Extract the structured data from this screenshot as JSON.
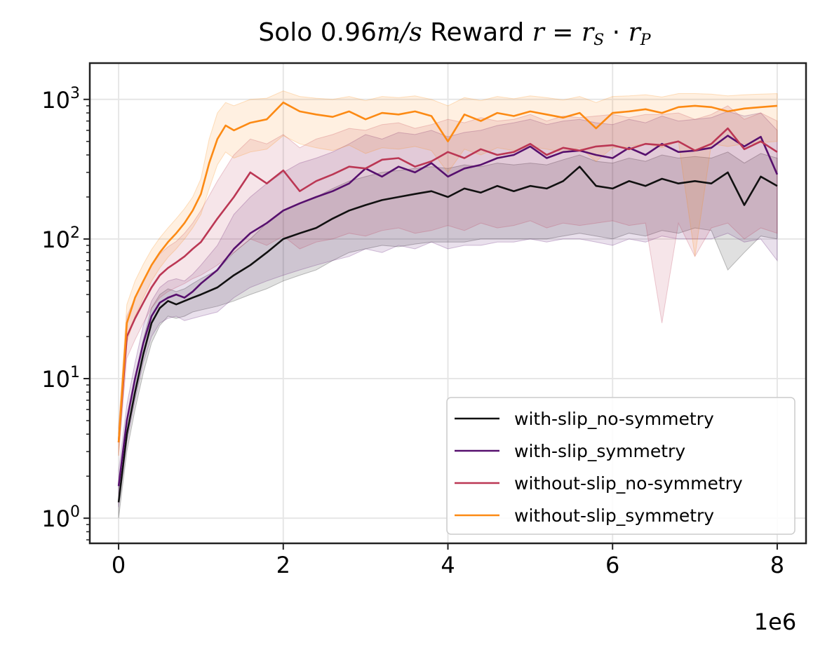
{
  "chart_data": {
    "type": "line",
    "title": {
      "prefix": "Solo 0.96",
      "unit": "m/s",
      "middle": " Reward ",
      "formula_r": "r",
      "formula_eq": " = ",
      "formula_rs": "r",
      "formula_rs_sub": "S",
      "formula_dot": " · ",
      "formula_rp": "r",
      "formula_rp_sub": "P"
    },
    "x_scale_label": "1e6",
    "xlabel": "",
    "ylabel": "",
    "xlim": [
      -0.35,
      8.35
    ],
    "ylim_log10": [
      -0.18,
      3.26
    ],
    "yscale": "log",
    "grid": true,
    "legend_position": "lower-right",
    "x_ticks": [
      {
        "value": 0,
        "label": "0"
      },
      {
        "value": 2,
        "label": "2"
      },
      {
        "value": 4,
        "label": "4"
      },
      {
        "value": 6,
        "label": "6"
      },
      {
        "value": 8,
        "label": "8"
      }
    ],
    "y_ticks": [
      {
        "exp": 0,
        "base": "10",
        "sup": "0"
      },
      {
        "exp": 1,
        "base": "10",
        "sup": "1"
      },
      {
        "exp": 2,
        "base": "10",
        "sup": "2"
      },
      {
        "exp": 3,
        "base": "10",
        "sup": "3"
      }
    ],
    "series": [
      {
        "name": "with-slip_no-symmetry",
        "color": "#111111",
        "x": [
          0,
          0.1,
          0.2,
          0.3,
          0.4,
          0.5,
          0.6,
          0.7,
          0.8,
          0.9,
          1.0,
          1.2,
          1.4,
          1.6,
          1.8,
          2.0,
          2.2,
          2.4,
          2.6,
          2.8,
          3.0,
          3.2,
          3.4,
          3.6,
          3.8,
          4.0,
          4.2,
          4.4,
          4.6,
          4.8,
          5.0,
          5.2,
          5.4,
          5.6,
          5.8,
          6.0,
          6.2,
          6.4,
          6.6,
          6.8,
          7.0,
          7.2,
          7.4,
          7.6,
          7.8,
          8.0
        ],
        "y": [
          1.3,
          4,
          8,
          15,
          25,
          32,
          36,
          34,
          36,
          38,
          40,
          45,
          55,
          65,
          80,
          100,
          110,
          120,
          140,
          160,
          175,
          190,
          200,
          210,
          220,
          200,
          230,
          215,
          240,
          220,
          240,
          230,
          260,
          330,
          240,
          230,
          260,
          240,
          270,
          250,
          260,
          250,
          300,
          175,
          280,
          240
        ],
        "y_low": [
          1.0,
          3,
          6,
          11,
          18,
          24,
          28,
          27,
          28,
          30,
          31,
          33,
          36,
          40,
          44,
          50,
          55,
          60,
          70,
          80,
          85,
          90,
          88,
          92,
          95,
          95,
          95,
          100,
          100,
          100,
          100,
          100,
          105,
          110,
          105,
          100,
          110,
          105,
          115,
          110,
          120,
          115,
          60,
          80,
          105,
          100
        ],
        "y_high": [
          1.7,
          5,
          10,
          19,
          32,
          40,
          44,
          42,
          44,
          48,
          52,
          60,
          80,
          100,
          130,
          160,
          180,
          200,
          230,
          260,
          280,
          300,
          310,
          320,
          330,
          320,
          340,
          330,
          350,
          340,
          350,
          340,
          370,
          400,
          360,
          350,
          380,
          360,
          400,
          380,
          390,
          380,
          420,
          350,
          410,
          380
        ]
      },
      {
        "name": "with-slip_symmetry",
        "color": "#57106e",
        "x": [
          0,
          0.1,
          0.2,
          0.3,
          0.4,
          0.5,
          0.6,
          0.7,
          0.8,
          0.9,
          1.0,
          1.2,
          1.4,
          1.6,
          1.8,
          2.0,
          2.2,
          2.4,
          2.6,
          2.8,
          3.0,
          3.2,
          3.4,
          3.6,
          3.8,
          4.0,
          4.2,
          4.4,
          4.6,
          4.8,
          5.0,
          5.2,
          5.4,
          5.6,
          5.8,
          6.0,
          6.2,
          6.4,
          6.6,
          6.8,
          7.0,
          7.2,
          7.4,
          7.6,
          7.8,
          8.0
        ],
        "y": [
          1.7,
          5,
          10,
          18,
          28,
          35,
          38,
          40,
          38,
          42,
          48,
          60,
          85,
          110,
          130,
          160,
          180,
          200,
          220,
          250,
          320,
          280,
          330,
          300,
          350,
          280,
          320,
          340,
          380,
          400,
          460,
          380,
          420,
          430,
          400,
          380,
          450,
          400,
          480,
          420,
          430,
          450,
          550,
          460,
          540,
          290
        ],
        "y_low": [
          1.2,
          3.5,
          7,
          13,
          20,
          25,
          27,
          28,
          26,
          27,
          28,
          30,
          38,
          45,
          50,
          55,
          60,
          65,
          70,
          75,
          85,
          80,
          90,
          85,
          95,
          85,
          90,
          90,
          95,
          95,
          100,
          95,
          100,
          100,
          95,
          90,
          100,
          95,
          105,
          100,
          100,
          100,
          110,
          95,
          100,
          70
        ],
        "y_high": [
          2.2,
          6.5,
          13,
          24,
          36,
          45,
          50,
          52,
          50,
          56,
          65,
          90,
          150,
          200,
          250,
          300,
          350,
          380,
          420,
          480,
          560,
          520,
          580,
          560,
          600,
          540,
          580,
          600,
          650,
          680,
          720,
          660,
          700,
          720,
          680,
          660,
          720,
          680,
          760,
          700,
          720,
          740,
          820,
          760,
          800,
          600
        ]
      },
      {
        "name": "without-slip_no-symmetry",
        "color": "#bb3754",
        "x": [
          0,
          0.1,
          0.2,
          0.3,
          0.4,
          0.5,
          0.6,
          0.7,
          0.8,
          0.9,
          1.0,
          1.2,
          1.4,
          1.6,
          1.8,
          2.0,
          2.2,
          2.4,
          2.6,
          2.8,
          3.0,
          3.2,
          3.4,
          3.6,
          3.8,
          4.0,
          4.2,
          4.4,
          4.6,
          4.8,
          5.0,
          5.2,
          5.4,
          5.6,
          5.8,
          6.0,
          6.2,
          6.4,
          6.6,
          6.8,
          7.0,
          7.2,
          7.4,
          7.6,
          7.8,
          8.0
        ],
        "y": [
          3.5,
          20,
          27,
          35,
          45,
          55,
          62,
          68,
          75,
          85,
          95,
          140,
          200,
          300,
          250,
          310,
          220,
          260,
          290,
          330,
          320,
          370,
          380,
          330,
          360,
          420,
          380,
          440,
          400,
          420,
          480,
          400,
          450,
          430,
          460,
          470,
          440,
          480,
          470,
          500,
          430,
          480,
          620,
          440,
          500,
          420
        ],
        "y_low": [
          2.8,
          14,
          19,
          25,
          32,
          38,
          42,
          45,
          48,
          52,
          55,
          65,
          80,
          100,
          90,
          105,
          85,
          95,
          100,
          110,
          105,
          115,
          120,
          110,
          115,
          125,
          115,
          130,
          120,
          125,
          135,
          120,
          130,
          125,
          130,
          135,
          125,
          130,
          25,
          130,
          75,
          120,
          130,
          100,
          120,
          110
        ],
        "y_high": [
          4.5,
          28,
          38,
          50,
          64,
          78,
          88,
          96,
          110,
          130,
          160,
          260,
          400,
          520,
          480,
          560,
          450,
          520,
          560,
          620,
          600,
          660,
          680,
          620,
          660,
          720,
          680,
          740,
          700,
          720,
          780,
          700,
          760,
          740,
          760,
          780,
          740,
          780,
          780,
          800,
          720,
          780,
          900,
          720,
          800,
          700
        ]
      },
      {
        "name": "without-slip_symmetry",
        "color": "#fc8a14",
        "x": [
          0,
          0.1,
          0.2,
          0.3,
          0.4,
          0.5,
          0.6,
          0.7,
          0.8,
          0.9,
          1.0,
          1.1,
          1.2,
          1.3,
          1.4,
          1.6,
          1.8,
          2.0,
          2.2,
          2.4,
          2.6,
          2.8,
          3.0,
          3.2,
          3.4,
          3.6,
          3.8,
          4.0,
          4.2,
          4.4,
          4.6,
          4.8,
          5.0,
          5.2,
          5.4,
          5.6,
          5.8,
          6.0,
          6.2,
          6.4,
          6.6,
          6.8,
          7.0,
          7.2,
          7.4,
          7.6,
          7.8,
          8.0
        ],
        "y": [
          3.5,
          25,
          38,
          50,
          65,
          80,
          95,
          110,
          130,
          160,
          210,
          350,
          520,
          650,
          600,
          680,
          720,
          950,
          820,
          780,
          750,
          820,
          720,
          800,
          780,
          820,
          760,
          500,
          780,
          700,
          800,
          760,
          820,
          780,
          740,
          800,
          620,
          800,
          820,
          850,
          800,
          880,
          900,
          880,
          820,
          860,
          880,
          900
        ],
        "y_low": [
          2.8,
          18,
          28,
          38,
          50,
          62,
          74,
          85,
          100,
          120,
          150,
          230,
          340,
          420,
          380,
          420,
          440,
          550,
          480,
          450,
          430,
          470,
          410,
          450,
          440,
          460,
          430,
          300,
          440,
          400,
          450,
          430,
          460,
          440,
          420,
          450,
          360,
          450,
          460,
          480,
          450,
          500,
          75,
          480,
          460,
          480,
          490,
          500
        ],
        "y_high": [
          4.5,
          34,
          50,
          66,
          84,
          102,
          120,
          140,
          165,
          200,
          270,
          520,
          800,
          950,
          900,
          1000,
          1020,
          1150,
          1050,
          1020,
          1000,
          1050,
          980,
          1050,
          1030,
          1060,
          1000,
          900,
          1030,
          980,
          1050,
          1010,
          1060,
          1030,
          990,
          1050,
          950,
          1050,
          1060,
          1080,
          1040,
          1100,
          1100,
          1090,
          1060,
          1080,
          1090,
          1100
        ]
      }
    ]
  }
}
